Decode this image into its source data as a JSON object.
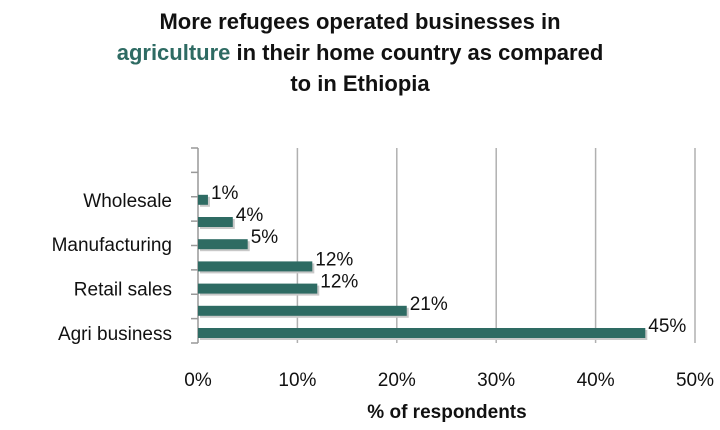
{
  "chart_data": {
    "type": "bar",
    "orientation": "horizontal",
    "title_parts": [
      {
        "text": "More refugees operated businesses in",
        "highlight": false,
        "newline_after": true
      },
      {
        "text": "agriculture",
        "highlight": true,
        "newline_after": false
      },
      {
        "text": " in their home country as compared",
        "highlight": false,
        "newline_after": true
      },
      {
        "text": "to in Ethiopia",
        "highlight": false,
        "newline_after": false
      }
    ],
    "xlabel": "% of respondents",
    "ylabel": "",
    "xlim": [
      0,
      50
    ],
    "x_ticks": [
      "0%",
      "10%",
      "20%",
      "30%",
      "40%",
      "50%"
    ],
    "grid": true,
    "legend": "none",
    "bars": [
      {
        "label": "Agri business",
        "value": 45,
        "value_label": "45%"
      },
      {
        "label": "",
        "value": 21,
        "value_label": "21%"
      },
      {
        "label": "Retail sales",
        "value": 12,
        "value_label": "12%"
      },
      {
        "label": "",
        "value": 11.5,
        "value_label": "12%"
      },
      {
        "label": "Manufacturing",
        "value": 5,
        "value_label": "5%"
      },
      {
        "label": "",
        "value": 3.5,
        "value_label": "4%"
      },
      {
        "label": "Wholesale",
        "value": 1,
        "value_label": "1%"
      }
    ],
    "colors": {
      "bar": "#2e6b63",
      "bar_shadow": "#c8c8c8",
      "grid": "#b0b0b0",
      "accent_text": "#2e6b63"
    }
  }
}
